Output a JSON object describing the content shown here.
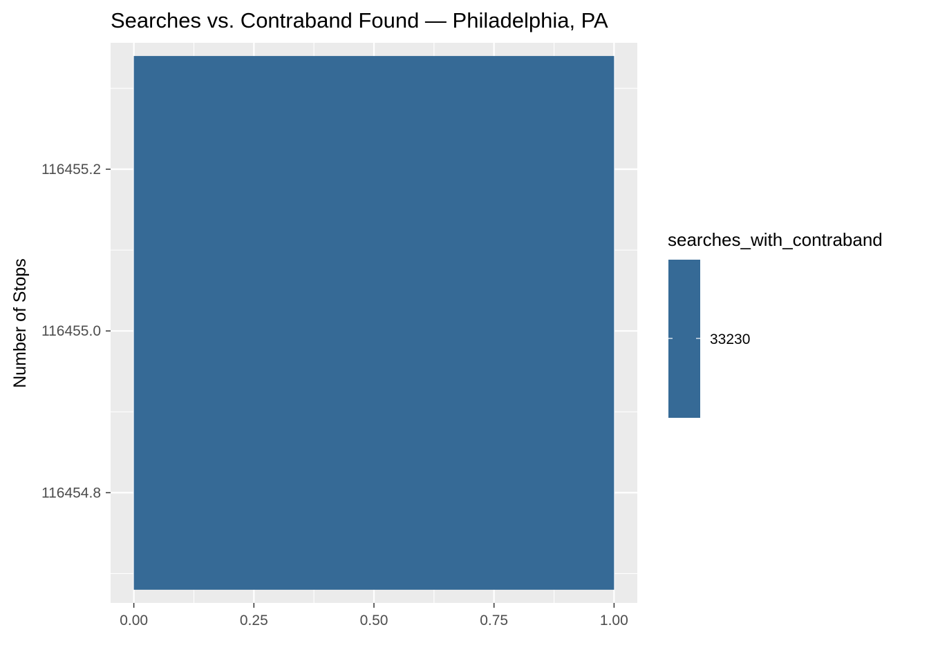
{
  "chart_data": {
    "type": "bar",
    "title": "Searches vs. Contraband Found — Philadelphia, PA",
    "xlabel": "",
    "ylabel": "Number of Stops",
    "xlim": [
      -0.0484,
      1.0484
    ],
    "ylim": [
      116454.6637,
      116455.3563
    ],
    "x_ticks": [
      0,
      0.25,
      0.5,
      0.75,
      1
    ],
    "x_tick_labels": [
      "0.00",
      "0.25",
      "0.50",
      "0.75",
      "1.00"
    ],
    "y_ticks": [
      116454.8,
      116455.0,
      116455.2
    ],
    "y_tick_labels": [
      "116454.8",
      "116455.0",
      "116455.2"
    ],
    "bars": [
      {
        "x_min": 0,
        "x_max": 1,
        "y_min": 116454.68,
        "y_max": 116455.34,
        "fill_value": 33230
      }
    ],
    "grid": true,
    "legend": {
      "title": "searches_with_contraband",
      "position": "right",
      "labels": [
        "33230"
      ],
      "color": "#366a96"
    },
    "colors": {
      "bar": "#366a96",
      "panel": "#ebebeb",
      "grid": "#ffffff"
    }
  }
}
